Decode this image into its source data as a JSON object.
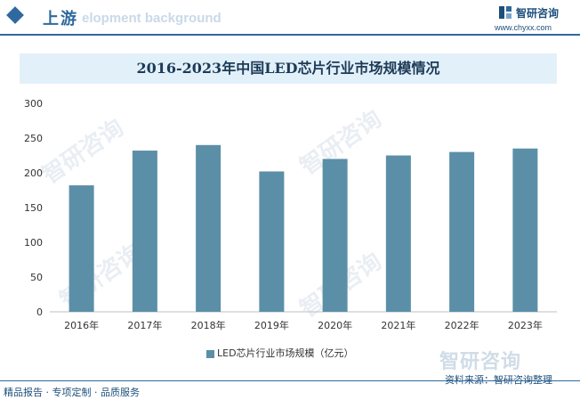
{
  "header": {
    "section_title": "上游",
    "background_text": "elopment background",
    "logo_name": "智研咨询",
    "logo_url": "www.chyxx.com"
  },
  "chart_data": {
    "type": "bar",
    "title": "2016-2023年中国LED芯片行业市场规模情况",
    "categories": [
      "2016年",
      "2017年",
      "2018年",
      "2019年",
      "2020年",
      "2021年",
      "2022年",
      "2023年"
    ],
    "series": [
      {
        "name": "LED芯片行业市场规模（亿元）",
        "values": [
          182,
          232,
          240,
          202,
          220,
          225,
          230,
          235
        ]
      }
    ],
    "ylim": [
      0,
      300
    ],
    "yticks": [
      0,
      50,
      100,
      150,
      200,
      250,
      300
    ],
    "bar_color": "#5b8fa8",
    "grid": false,
    "legend_position": "bottom"
  },
  "watermark": "智研咨询",
  "source": "资料来源：智研咨询整理",
  "footer": "精品报告 · 专项定制 · 品质服务"
}
